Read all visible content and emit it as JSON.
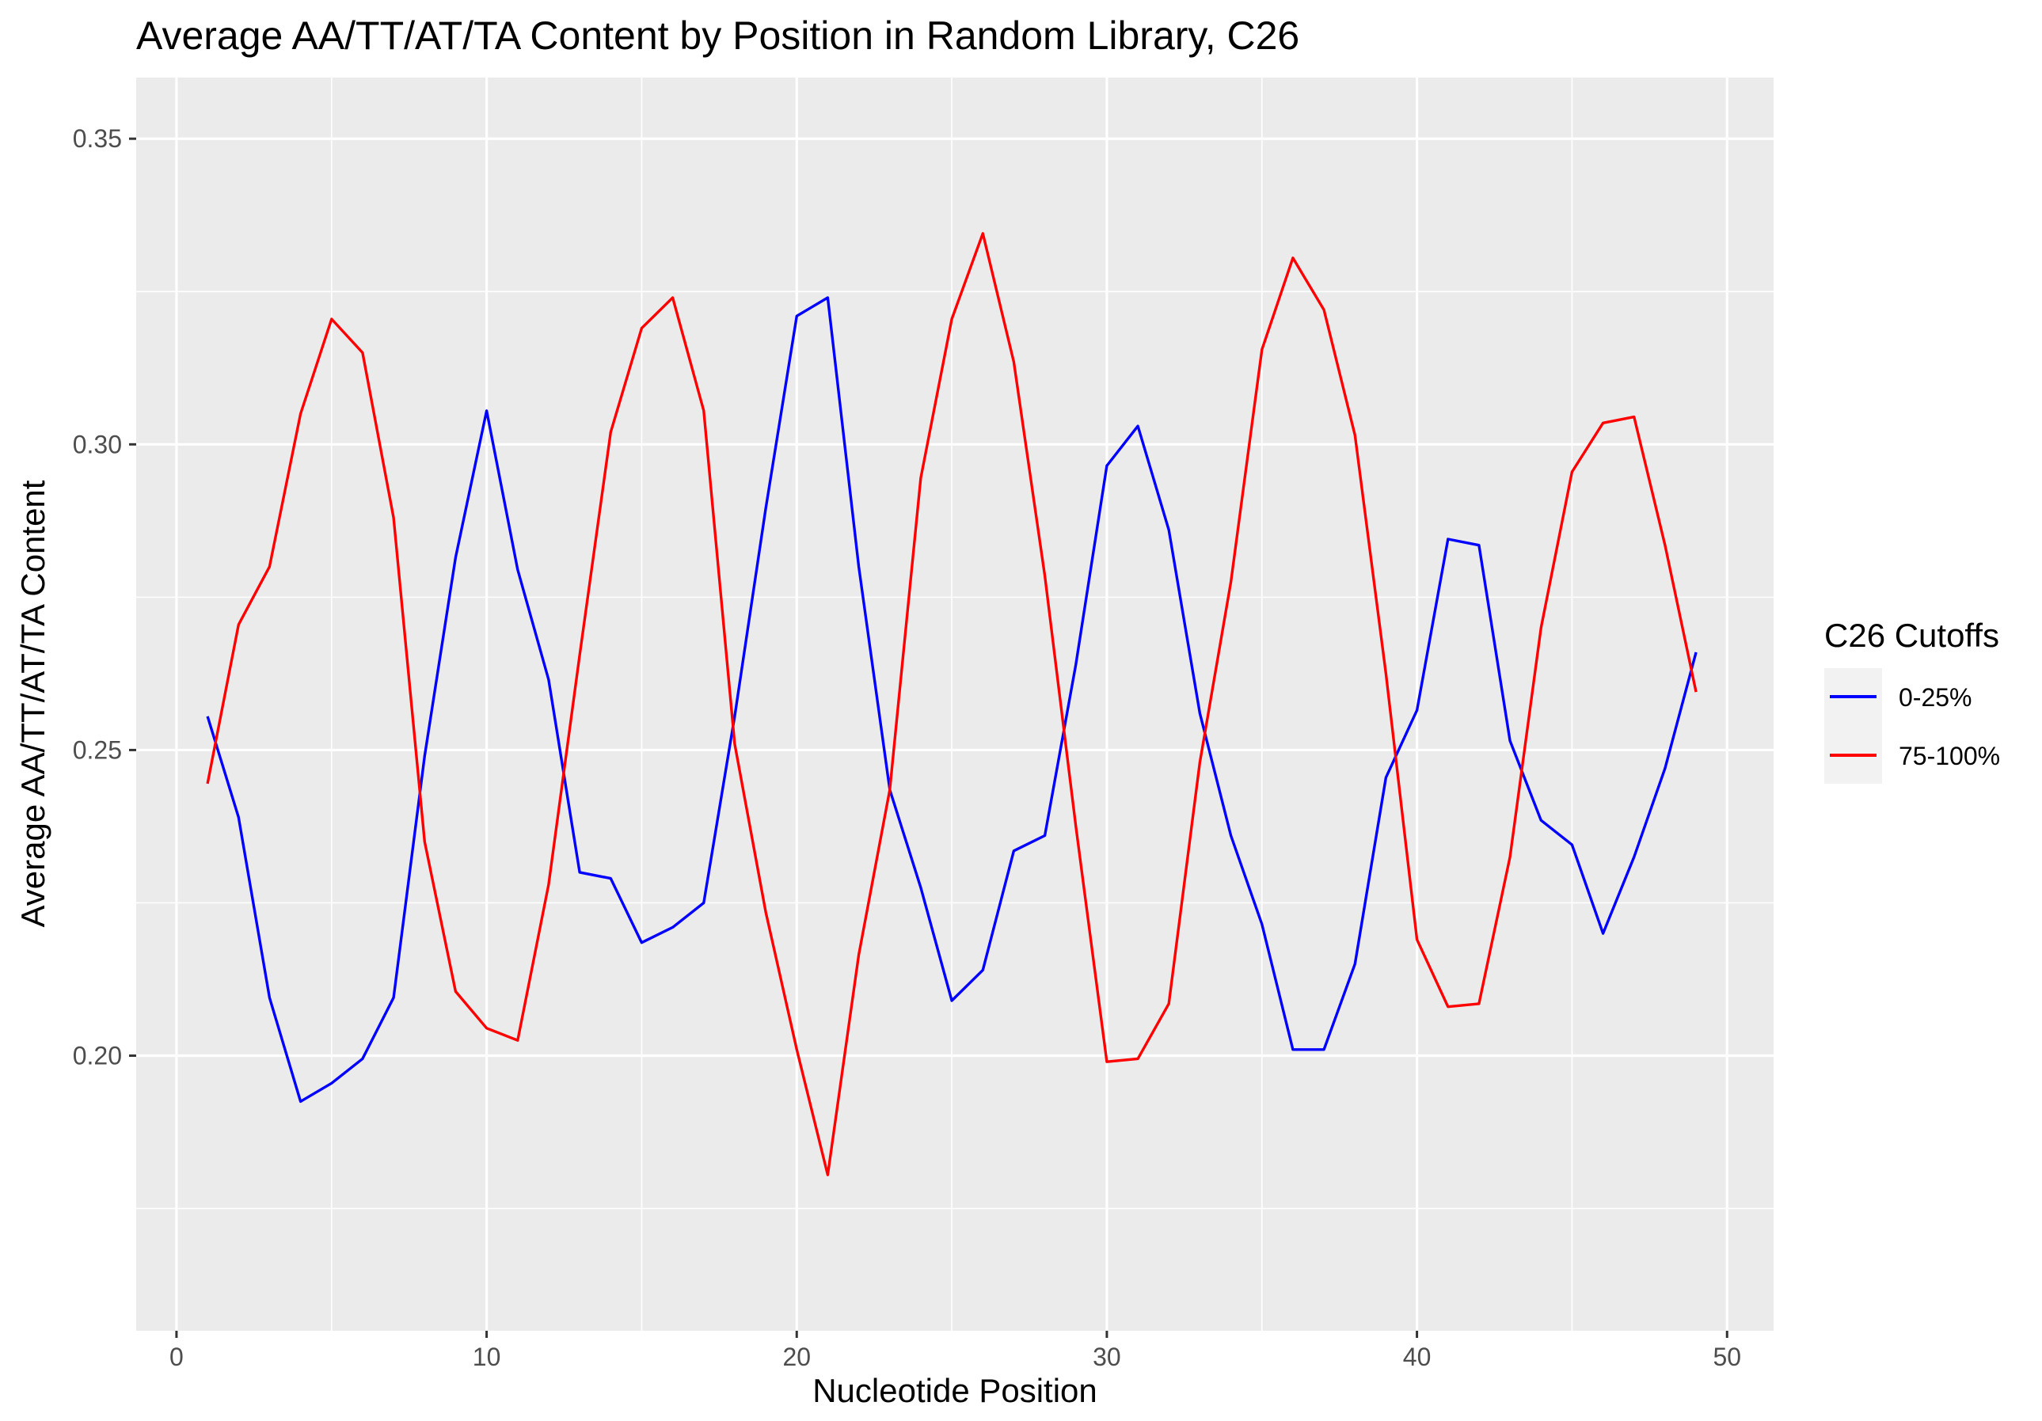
{
  "chart_data": {
    "type": "line",
    "title": "Average AA/TT/AT/TA Content by Position in Random Library, C26",
    "xlabel": "Nucleotide Position",
    "ylabel": "Average AA/TT/AT/TA Content",
    "xlim": [
      -1.3,
      51.5
    ],
    "ylim": [
      0.155,
      0.36
    ],
    "x_ticks": [
      0,
      10,
      20,
      30,
      40,
      50
    ],
    "x_tick_labels": [
      "0",
      "10",
      "20",
      "30",
      "40",
      "50"
    ],
    "y_ticks": [
      0.2,
      0.25,
      0.3,
      0.35
    ],
    "y_tick_labels": [
      "0.20",
      "0.25",
      "0.30",
      "0.35"
    ],
    "y_minor_ticks": [
      0.175,
      0.225,
      0.275,
      0.325
    ],
    "x_minor_ticks": [
      5,
      15,
      25,
      35,
      45
    ],
    "grid": true,
    "panel_background": "#ebebeb",
    "legend": {
      "title": "C26 Cutoffs",
      "placement": "right",
      "entries": [
        "0-25%",
        "75-100%"
      ]
    },
    "x": [
      1,
      2,
      3,
      4,
      5,
      6,
      7,
      8,
      9,
      10,
      11,
      12,
      13,
      14,
      15,
      16,
      17,
      18,
      19,
      20,
      21,
      22,
      23,
      24,
      25,
      26,
      27,
      28,
      29,
      30,
      31,
      32,
      33,
      34,
      35,
      36,
      37,
      38,
      39,
      40,
      41,
      42,
      43,
      44,
      45,
      46,
      47,
      48,
      49
    ],
    "series": [
      {
        "name": "0-25%",
        "color": "#0000ff",
        "values": [
          0.2555,
          0.239,
          0.2095,
          0.1925,
          0.1955,
          0.1995,
          0.2095,
          0.249,
          0.2815,
          0.3055,
          0.2795,
          0.2615,
          0.23,
          0.229,
          0.2185,
          0.221,
          0.225,
          0.2555,
          0.2895,
          0.321,
          0.324,
          0.28,
          0.2435,
          0.2275,
          0.209,
          0.214,
          0.2335,
          0.236,
          0.264,
          0.2965,
          0.303,
          0.286,
          0.256,
          0.236,
          0.2215,
          0.201,
          0.201,
          0.215,
          0.2455,
          0.2565,
          0.2845,
          0.2835,
          0.2515,
          0.2385,
          0.2345,
          0.22,
          0.2325,
          0.247,
          0.266
        ]
      },
      {
        "name": "75-100%",
        "color": "#ff0000",
        "values": [
          0.2445,
          0.2705,
          0.28,
          0.305,
          0.3205,
          0.315,
          0.288,
          0.235,
          0.2105,
          0.2045,
          0.2025,
          0.228,
          0.2655,
          0.302,
          0.319,
          0.324,
          0.3055,
          0.251,
          0.2235,
          0.201,
          0.1805,
          0.2165,
          0.2435,
          0.2945,
          0.3205,
          0.3345,
          0.3135,
          0.2785,
          0.2375,
          0.199,
          0.1995,
          0.2085,
          0.248,
          0.2775,
          0.3155,
          0.3305,
          0.322,
          0.3015,
          0.2625,
          0.219,
          0.208,
          0.2085,
          0.2325,
          0.27,
          0.2955,
          0.3035,
          0.3045,
          0.2835,
          0.2595
        ]
      }
    ]
  }
}
